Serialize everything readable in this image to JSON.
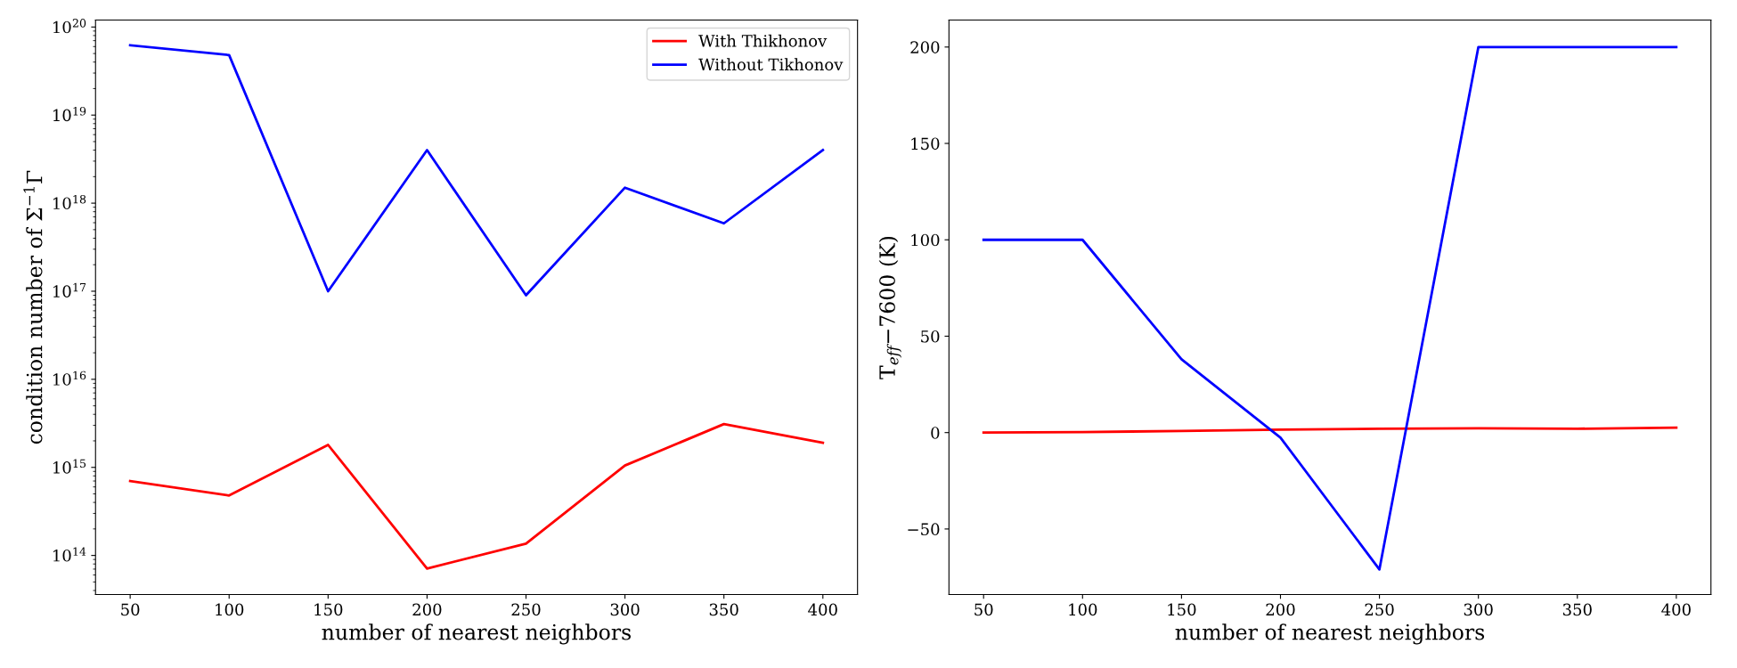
{
  "chart_data": [
    {
      "type": "line",
      "xlabel": "number of nearest neighbors",
      "ylabel": "condition number of Σ$^{−1}$Γ",
      "log": "y",
      "legend": "top right",
      "grid": false,
      "x": [
        50,
        100,
        150,
        200,
        250,
        300,
        350,
        400
      ],
      "xlim": [
        32.5,
        417.5
      ],
      "xticks": [
        50,
        100,
        150,
        200,
        250,
        300,
        350,
        400
      ],
      "ylim": [
        36000000000000.0,
        1.2e+20
      ],
      "yticks": [
        {
          "value": 100000000000000.0,
          "label": "10$^{14}$"
        },
        {
          "value": 1000000000000000.0,
          "label": "10$^{15}$"
        },
        {
          "value": 1e+16,
          "label": "10$^{16}$"
        },
        {
          "value": 1e+17,
          "label": "10$^{17}$"
        },
        {
          "value": 1e+18,
          "label": "10$^{18}$"
        },
        {
          "value": 1e+19,
          "label": "10$^{19}$"
        },
        {
          "value": 1e+20,
          "label": "10$^{20}$"
        }
      ],
      "series": [
        {
          "name": "With Thikhonov",
          "color": "#ff0000",
          "values": [
            700000000000000.0,
            480000000000000.0,
            1800000000000000.0,
            71000000000000.0,
            136000000000000.0,
            1050000000000000.0,
            3100000000000000.0,
            1900000000000000.0
          ]
        },
        {
          "name": "Without Tikhonov",
          "color": "#0000ff",
          "values": [
            6.2e+19,
            4.8e+19,
            1e+17,
            4e+18,
            9e+16,
            1.5e+18,
            5.9e+17,
            4e+18
          ]
        }
      ]
    },
    {
      "type": "line",
      "xlabel": "number of nearest neighbors",
      "ylabel": "T$_{eff}$−7600 (K)",
      "grid": false,
      "x": [
        50,
        100,
        150,
        200,
        250,
        300,
        350,
        400
      ],
      "xlim": [
        32.5,
        417.5
      ],
      "xticks": [
        50,
        100,
        150,
        200,
        250,
        300,
        350,
        400
      ],
      "ylim": [
        -84,
        214
      ],
      "yticks": [
        {
          "value": -50,
          "label": "−50"
        },
        0,
        50,
        100,
        150,
        200
      ],
      "series": [
        {
          "color": "#ff0000",
          "values": [
            0,
            0.3,
            0.8,
            1.5,
            2,
            2.2,
            2,
            2.6
          ]
        },
        {
          "color": "#0000ff",
          "values": [
            100,
            100,
            38,
            -2.6,
            -71,
            200,
            200,
            200
          ]
        }
      ]
    }
  ]
}
